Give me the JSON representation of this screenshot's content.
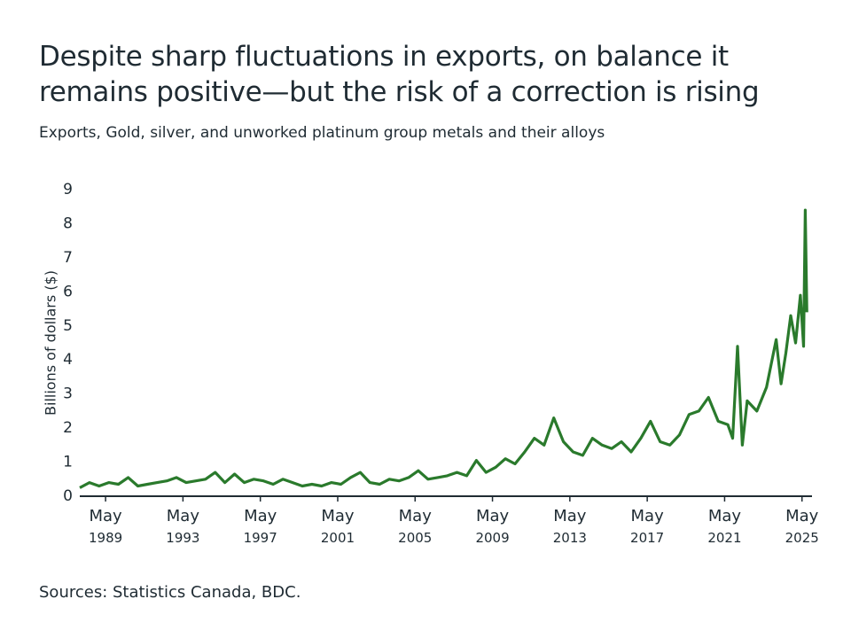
{
  "chart_data": {
    "type": "line",
    "title": "Despite sharp fluctuations in exports, on balance it remains positive—but the risk of a correction is rising",
    "subtitle": "Exports, Gold, silver, and unworked platinum group metals and their alloys",
    "y_label": "Billions of dollars ($)",
    "source": "Sources: Statistics Canada, BDC.",
    "x": [
      "1988-01",
      "1988-07",
      "1989-01",
      "1989-07",
      "1990-01",
      "1990-07",
      "1991-01",
      "1991-07",
      "1992-01",
      "1992-07",
      "1993-01",
      "1993-07",
      "1994-01",
      "1994-07",
      "1995-01",
      "1995-07",
      "1996-01",
      "1996-07",
      "1997-01",
      "1997-07",
      "1998-01",
      "1998-07",
      "1999-01",
      "1999-07",
      "2000-01",
      "2000-07",
      "2001-01",
      "2001-07",
      "2002-01",
      "2002-07",
      "2003-01",
      "2003-07",
      "2004-01",
      "2004-07",
      "2005-01",
      "2005-07",
      "2006-01",
      "2006-07",
      "2007-01",
      "2007-07",
      "2008-01",
      "2008-07",
      "2009-01",
      "2009-07",
      "2010-01",
      "2010-07",
      "2011-01",
      "2011-07",
      "2012-01",
      "2012-07",
      "2013-01",
      "2013-07",
      "2014-01",
      "2014-07",
      "2015-01",
      "2015-07",
      "2016-01",
      "2016-07",
      "2017-01",
      "2017-07",
      "2018-01",
      "2018-07",
      "2019-01",
      "2019-07",
      "2020-01",
      "2020-07",
      "2021-01",
      "2021-07",
      "2021-10",
      "2022-01",
      "2022-04",
      "2022-07",
      "2023-01",
      "2023-07",
      "2024-01",
      "2024-04",
      "2024-07",
      "2024-10",
      "2025-01",
      "2025-04",
      "2025-06",
      "2025-07",
      "2025-08"
    ],
    "series": [
      {
        "name": "Exports",
        "color": "#2a7a2c",
        "values": [
          0.25,
          0.4,
          0.3,
          0.4,
          0.35,
          0.55,
          0.3,
          0.35,
          0.4,
          0.45,
          0.55,
          0.4,
          0.45,
          0.5,
          0.7,
          0.4,
          0.65,
          0.4,
          0.5,
          0.45,
          0.35,
          0.5,
          0.4,
          0.3,
          0.35,
          0.3,
          0.4,
          0.35,
          0.55,
          0.7,
          0.4,
          0.35,
          0.5,
          0.45,
          0.55,
          0.75,
          0.5,
          0.55,
          0.6,
          0.7,
          0.6,
          1.05,
          0.7,
          0.85,
          1.1,
          0.95,
          1.3,
          1.7,
          1.5,
          2.3,
          1.6,
          1.3,
          1.2,
          1.7,
          1.5,
          1.4,
          1.6,
          1.3,
          1.7,
          2.2,
          1.6,
          1.5,
          1.8,
          2.4,
          2.5,
          2.9,
          2.2,
          2.1,
          1.7,
          4.4,
          1.5,
          2.8,
          2.5,
          3.2,
          4.6,
          3.3,
          4.2,
          5.3,
          4.5,
          5.9,
          4.4,
          8.4,
          5.4
        ]
      }
    ],
    "xlim": [
      "1988-01",
      "2025-09"
    ],
    "xticks": [
      {
        "value": "1989-05",
        "label": [
          "May",
          "1989"
        ]
      },
      {
        "value": "1993-05",
        "label": [
          "May",
          "1993"
        ]
      },
      {
        "value": "1997-05",
        "label": [
          "May",
          "1997"
        ]
      },
      {
        "value": "2001-05",
        "label": [
          "May",
          "2001"
        ]
      },
      {
        "value": "2005-05",
        "label": [
          "May",
          "2005"
        ]
      },
      {
        "value": "2009-05",
        "label": [
          "May",
          "2009"
        ]
      },
      {
        "value": "2013-05",
        "label": [
          "May",
          "2013"
        ]
      },
      {
        "value": "2017-05",
        "label": [
          "May",
          "2017"
        ]
      },
      {
        "value": "2021-05",
        "label": [
          "May",
          "2021"
        ]
      },
      {
        "value": "2025-05",
        "label": [
          "May",
          "2025"
        ]
      }
    ],
    "ylim": [
      0,
      9
    ],
    "yticks": [
      0,
      1,
      2,
      3,
      4,
      5,
      6,
      7,
      8,
      9
    ],
    "grid": false
  }
}
